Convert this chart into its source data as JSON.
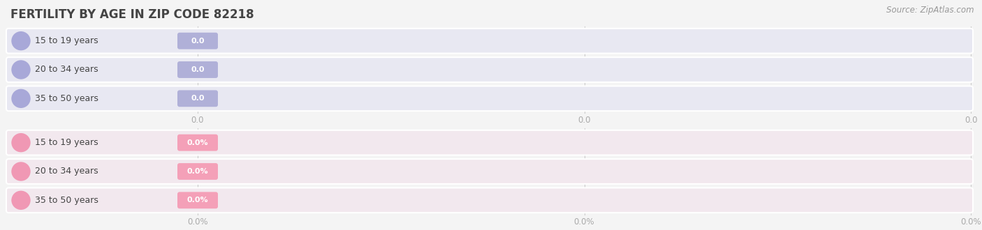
{
  "title": "FERTILITY BY AGE IN ZIP CODE 82218",
  "source": "Source: ZipAtlas.com",
  "background_color": "#f4f4f4",
  "top_section": {
    "categories": [
      "15 to 19 years",
      "20 to 34 years",
      "35 to 50 years"
    ],
    "values": [
      0.0,
      0.0,
      0.0
    ],
    "bar_bg_color": "#e8e8f2",
    "bar_fill_color": "#a8a8d8",
    "value_bg_color": "#b0b0d8",
    "tick_values": [
      0.0,
      0.0,
      0.0
    ],
    "tick_suffix": ""
  },
  "bottom_section": {
    "categories": [
      "15 to 19 years",
      "20 to 34 years",
      "35 to 50 years"
    ],
    "values": [
      0.0,
      0.0,
      0.0
    ],
    "bar_bg_color": "#f2e8ee",
    "bar_fill_color": "#f098b4",
    "value_bg_color": "#f4a0b8",
    "tick_values": [
      0.0,
      0.0,
      0.0
    ],
    "tick_suffix": "%"
  },
  "title_fontsize": 12,
  "source_fontsize": 8.5,
  "label_fontsize": 9,
  "value_fontsize": 8,
  "tick_fontsize": 8.5
}
